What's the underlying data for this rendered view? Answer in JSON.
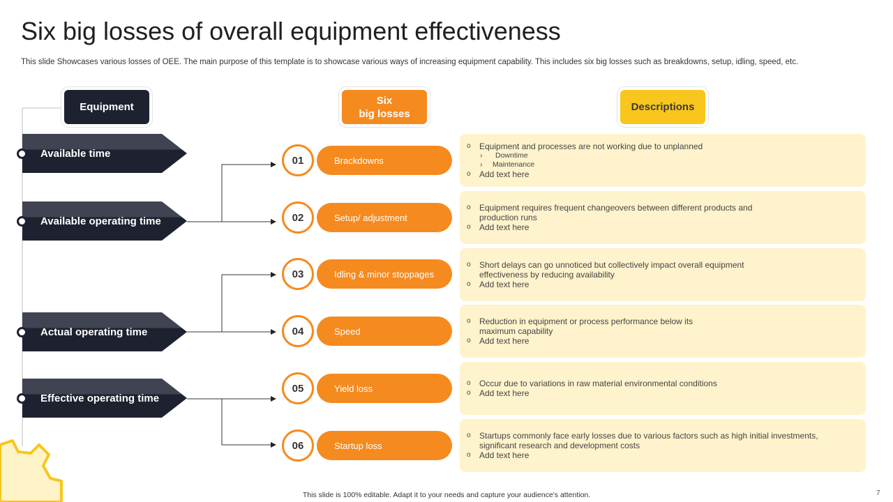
{
  "title": "Six big losses of overall equipment effectiveness",
  "subtitle": "This slide Showcases various losses of OEE. The main purpose of this template is to showcase various ways of increasing equipment capability. This includes six big losses such as breakdowns, setup, idling, speed, etc.",
  "headers": {
    "equipment": "Equipment",
    "losses_line1": "Six",
    "losses_line2": "big losses",
    "descriptions": "Descriptions"
  },
  "equipment_items": [
    {
      "label": "Available time"
    },
    {
      "label": "Available operating time"
    },
    {
      "label": "Actual operating time"
    },
    {
      "label": "Effective operating time"
    }
  ],
  "losses": [
    {
      "number": "01",
      "label": "Brackdowns"
    },
    {
      "number": "02",
      "label": "Setup/ adjustment"
    },
    {
      "number": "03",
      "label": "Idling & minor stoppages"
    },
    {
      "number": "04",
      "label": "Speed"
    },
    {
      "number": "05",
      "label": "Yield loss"
    },
    {
      "number": "06",
      "label": "Startup loss"
    }
  ],
  "descriptions": [
    {
      "bullet1": "Equipment and processes are not working due to unplanned",
      "sub1": "Downtime",
      "sub2": "Maintenance",
      "bullet2": "Add text here"
    },
    {
      "bullet1_l1": "Equipment requires frequent changeovers between different products and",
      "bullet1_l2": "production runs",
      "bullet2": "Add text here"
    },
    {
      "bullet1_l1": "Short delays can go unnoticed but collectively impact overall equipment",
      "bullet1_l2": "effectiveness by reducing availability",
      "bullet2": "Add text here"
    },
    {
      "bullet1_l1": "Reduction in equipment or process performance below its",
      "bullet1_l2": "maximum capability",
      "bullet2": "Add text here"
    },
    {
      "bullet1": "Occur due to variations in raw material environmental conditions",
      "bullet2": "Add text here"
    },
    {
      "bullet1_l1": "Startups commonly face early losses due to various factors such as high initial investments,",
      "bullet1_l2": "significant research and development costs",
      "bullet2": "Add text here"
    }
  ],
  "bullet_symbol": "o",
  "sub_bullet_symbol": "›",
  "footer": "This slide is 100% editable. Adapt it to your needs and capture your audience's attention.",
  "page_number": "7",
  "colors": {
    "dark": "#1e2230",
    "orange": "#f58a1f",
    "yellow": "#f8c61c",
    "desc_bg": "#fef3cc"
  }
}
